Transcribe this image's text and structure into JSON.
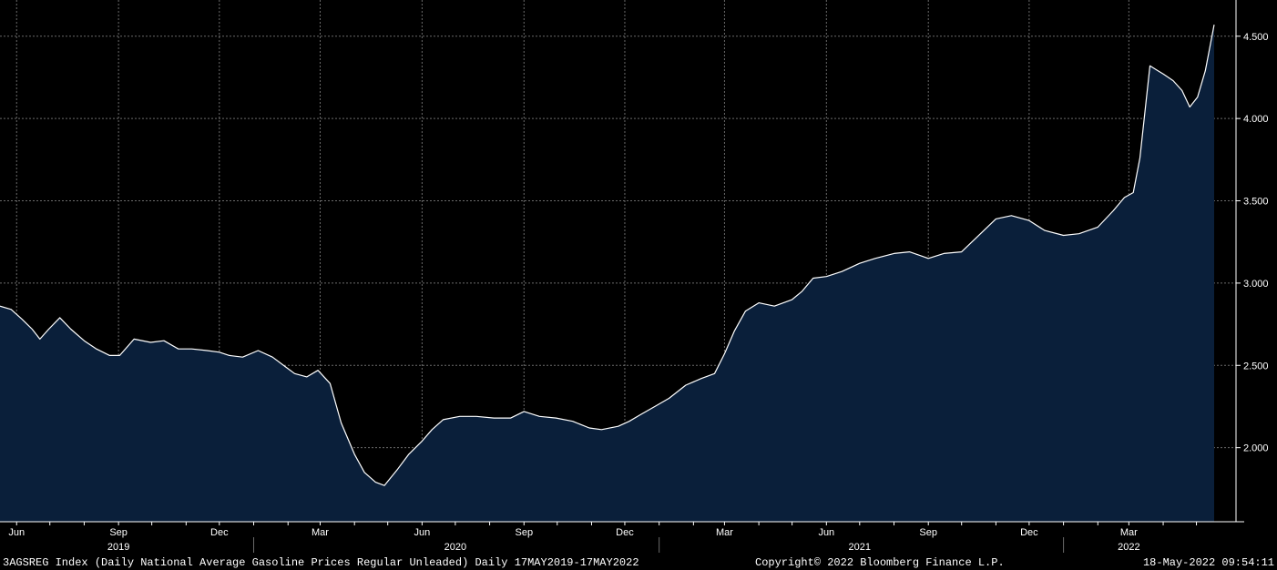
{
  "chart_data": {
    "type": "area",
    "title": "",
    "xlabel": "",
    "ylabel": "",
    "ylim": [
      1.55,
      4.72
    ],
    "xlim": [
      "2019-05-17",
      "2022-05-17"
    ],
    "grid": true,
    "colors": {
      "background": "#000000",
      "fill": "#0a1f3a",
      "line": "#ffffff",
      "grid": "#6b6b6b",
      "text": "#ffffff"
    },
    "y_ticks": [
      "2.000",
      "2.500",
      "3.000",
      "3.500",
      "4.000",
      "4.500"
    ],
    "x_month_ticks": [
      {
        "date": "2019-06-01",
        "label": "Jun"
      },
      {
        "date": "2019-09-01",
        "label": "Sep"
      },
      {
        "date": "2019-12-01",
        "label": "Dec"
      },
      {
        "date": "2020-03-01",
        "label": "Mar"
      },
      {
        "date": "2020-06-01",
        "label": "Jun"
      },
      {
        "date": "2020-09-01",
        "label": "Sep"
      },
      {
        "date": "2020-12-01",
        "label": "Dec"
      },
      {
        "date": "2021-03-01",
        "label": "Mar"
      },
      {
        "date": "2021-06-01",
        "label": "Jun"
      },
      {
        "date": "2021-09-01",
        "label": "Sep"
      },
      {
        "date": "2021-12-01",
        "label": "Dec"
      },
      {
        "date": "2022-03-01",
        "label": "Mar"
      }
    ],
    "x_year_labels": [
      {
        "date": "2019-09-01",
        "label": "2019"
      },
      {
        "date": "2020-07-01",
        "label": "2020"
      },
      {
        "date": "2021-07-01",
        "label": "2021"
      },
      {
        "date": "2022-03-01",
        "label": "2022"
      }
    ],
    "x_year_separators": [
      "2020-01-01",
      "2021-01-01",
      "2022-01-01"
    ],
    "series": [
      {
        "x": [
          "2019-05-17",
          "2019-05-27",
          "2019-06-06",
          "2019-06-15",
          "2019-06-22",
          "2019-06-30",
          "2019-07-10",
          "2019-07-20",
          "2019-08-01",
          "2019-08-12",
          "2019-08-24",
          "2019-09-02",
          "2019-09-15",
          "2019-09-30",
          "2019-10-12",
          "2019-10-25",
          "2019-11-06",
          "2019-11-20",
          "2019-12-01",
          "2019-12-10",
          "2019-12-22",
          "2020-01-05",
          "2020-01-18",
          "2020-01-30",
          "2020-02-07",
          "2020-02-18",
          "2020-02-28",
          "2020-03-10",
          "2020-03-20",
          "2020-04-01",
          "2020-04-10",
          "2020-04-20",
          "2020-04-28",
          "2020-05-10",
          "2020-05-20",
          "2020-06-01",
          "2020-06-10",
          "2020-06-20",
          "2020-07-05",
          "2020-07-20",
          "2020-08-05",
          "2020-08-20",
          "2020-09-01",
          "2020-09-15",
          "2020-09-30",
          "2020-10-15",
          "2020-10-30",
          "2020-11-10",
          "2020-11-25",
          "2020-12-05",
          "2020-12-15",
          "2020-12-28",
          "2021-01-10",
          "2021-01-25",
          "2021-02-08",
          "2021-02-20",
          "2021-03-01",
          "2021-03-10",
          "2021-03-20",
          "2021-04-01",
          "2021-04-15",
          "2021-05-01",
          "2021-05-10",
          "2021-05-20",
          "2021-06-01",
          "2021-06-15",
          "2021-07-01",
          "2021-07-15",
          "2021-08-01",
          "2021-08-15",
          "2021-09-01",
          "2021-09-15",
          "2021-10-01",
          "2021-10-15",
          "2021-11-01",
          "2021-11-15",
          "2021-12-01",
          "2021-12-15",
          "2022-01-01",
          "2022-01-15",
          "2022-02-01",
          "2022-02-15",
          "2022-02-25",
          "2022-03-05",
          "2022-03-11",
          "2022-03-20",
          "2022-04-01",
          "2022-04-10",
          "2022-04-18",
          "2022-04-25",
          "2022-05-02",
          "2022-05-09",
          "2022-05-17"
        ],
        "values": [
          2.86,
          2.84,
          2.78,
          2.72,
          2.66,
          2.72,
          2.79,
          2.72,
          2.65,
          2.6,
          2.56,
          2.56,
          2.66,
          2.64,
          2.65,
          2.6,
          2.6,
          2.59,
          2.58,
          2.56,
          2.55,
          2.59,
          2.55,
          2.49,
          2.45,
          2.43,
          2.47,
          2.39,
          2.15,
          1.96,
          1.85,
          1.79,
          1.77,
          1.87,
          1.96,
          2.04,
          2.11,
          2.17,
          2.19,
          2.19,
          2.18,
          2.18,
          2.22,
          2.19,
          2.18,
          2.16,
          2.12,
          2.11,
          2.13,
          2.16,
          2.2,
          2.25,
          2.3,
          2.38,
          2.42,
          2.45,
          2.57,
          2.71,
          2.83,
          2.88,
          2.86,
          2.9,
          2.95,
          3.03,
          3.04,
          3.07,
          3.12,
          3.15,
          3.18,
          3.19,
          3.15,
          3.18,
          3.19,
          3.28,
          3.39,
          3.41,
          3.38,
          3.32,
          3.29,
          3.3,
          3.34,
          3.44,
          3.52,
          3.55,
          3.76,
          4.32,
          4.27,
          4.23,
          4.17,
          4.07,
          4.13,
          4.29,
          4.57
        ]
      }
    ]
  },
  "footer": {
    "left": "3AGSREG Index (Daily National Average Gasoline Prices Regular Unleaded)  Daily 17MAY2019-17MAY2022",
    "middle": "Copyright© 2022 Bloomberg Finance L.P.",
    "right": "18-May-2022 09:54:11"
  }
}
